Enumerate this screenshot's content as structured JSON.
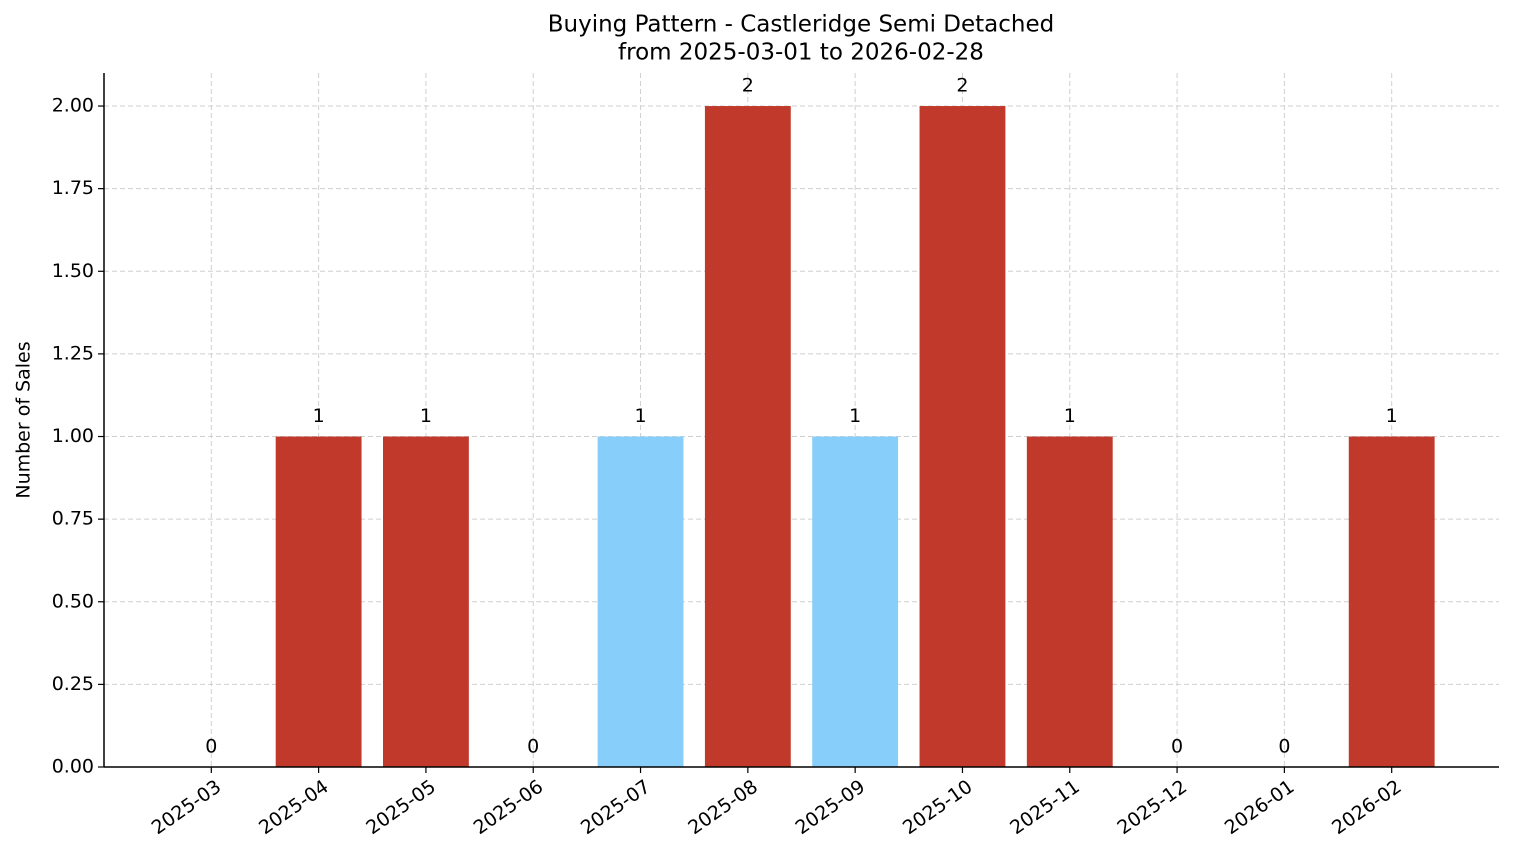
{
  "chart_data": {
    "type": "bar",
    "title": "Buying Pattern - Castleridge Semi Detached",
    "subtitle": "from 2025-03-01 to 2026-02-28",
    "y_label": "Number of Sales",
    "categories": [
      "2025-03",
      "2025-04",
      "2025-05",
      "2025-06",
      "2025-07",
      "2025-08",
      "2025-09",
      "2025-10",
      "2025-11",
      "2025-12",
      "2026-01",
      "2026-02"
    ],
    "values": [
      0,
      1,
      1,
      0,
      1,
      2,
      1,
      2,
      1,
      0,
      0,
      1
    ],
    "colors": [
      "#c0392b",
      "#c0392b",
      "#c0392b",
      "#c0392b",
      "#87cefa",
      "#c0392b",
      "#87cefa",
      "#c0392b",
      "#c0392b",
      "#c0392b",
      "#c0392b",
      "#c0392b"
    ],
    "ylim": [
      0,
      2.1
    ],
    "yticks": [
      {
        "value": 0,
        "label": "0.00"
      },
      {
        "value": 0.25,
        "label": "0.25"
      },
      {
        "value": 0.5,
        "label": "0.50"
      },
      {
        "value": 0.75,
        "label": "0.75"
      },
      {
        "value": 1,
        "label": "1.00"
      },
      {
        "value": 1.25,
        "label": "1.25"
      },
      {
        "value": 1.5,
        "label": "1.50"
      },
      {
        "value": 1.75,
        "label": "1.75"
      },
      {
        "value": 2,
        "label": "2.00"
      }
    ],
    "grid": true
  }
}
